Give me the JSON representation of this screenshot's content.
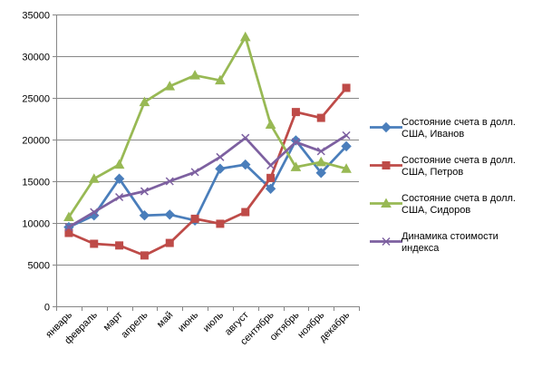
{
  "chart_data": {
    "type": "line",
    "title": "",
    "xlabel": "",
    "ylabel": "",
    "categories": [
      "январь",
      "февраль",
      "март",
      "апрель",
      "май",
      "июнь",
      "июль",
      "август",
      "сентябрь",
      "октябрь",
      "ноябрь",
      "декабрь"
    ],
    "ylim": [
      0,
      35000
    ],
    "yticks": [
      0,
      5000,
      10000,
      15000,
      20000,
      25000,
      30000,
      35000
    ],
    "ytick_labels": [
      "0",
      "5000",
      "10000",
      "15000",
      "20000",
      "25000",
      "30000",
      "35000"
    ],
    "grid": true,
    "legend_position": "right",
    "series": [
      {
        "name": "Состояние счета в долл. США, Иванов",
        "legend_lines": [
          "Состояние счета в долл.",
          "США, Иванов"
        ],
        "color": "#4a7ebb",
        "marker": "diamond",
        "values": [
          9500,
          10900,
          15300,
          10900,
          11000,
          10300,
          16500,
          17000,
          14100,
          19900,
          16000,
          19200
        ]
      },
      {
        "name": "Состояние счета в долл. США, Петров",
        "legend_lines": [
          "Состояние счета в долл.",
          "США, Петров"
        ],
        "color": "#be4b48",
        "marker": "square",
        "values": [
          8800,
          7500,
          7300,
          6100,
          7600,
          10500,
          9900,
          11300,
          15400,
          23300,
          22600,
          26200
        ]
      },
      {
        "name": "Состояние счета в долл. США, Сидоров",
        "legend_lines": [
          "Состояние счета в долл.",
          "США, Сидоров"
        ],
        "color": "#98b954",
        "marker": "triangle",
        "values": [
          10700,
          15300,
          17000,
          24500,
          26400,
          27700,
          27100,
          32300,
          21800,
          16700,
          17300,
          16500
        ]
      },
      {
        "name": "Динамика стоимости индекса",
        "legend_lines": [
          "Динамика стоимости",
          "индекса"
        ],
        "color": "#7d60a0",
        "marker": "x",
        "values": [
          9500,
          11300,
          13100,
          13800,
          15000,
          16100,
          17900,
          20200,
          16900,
          19700,
          18600,
          20500
        ]
      }
    ]
  }
}
